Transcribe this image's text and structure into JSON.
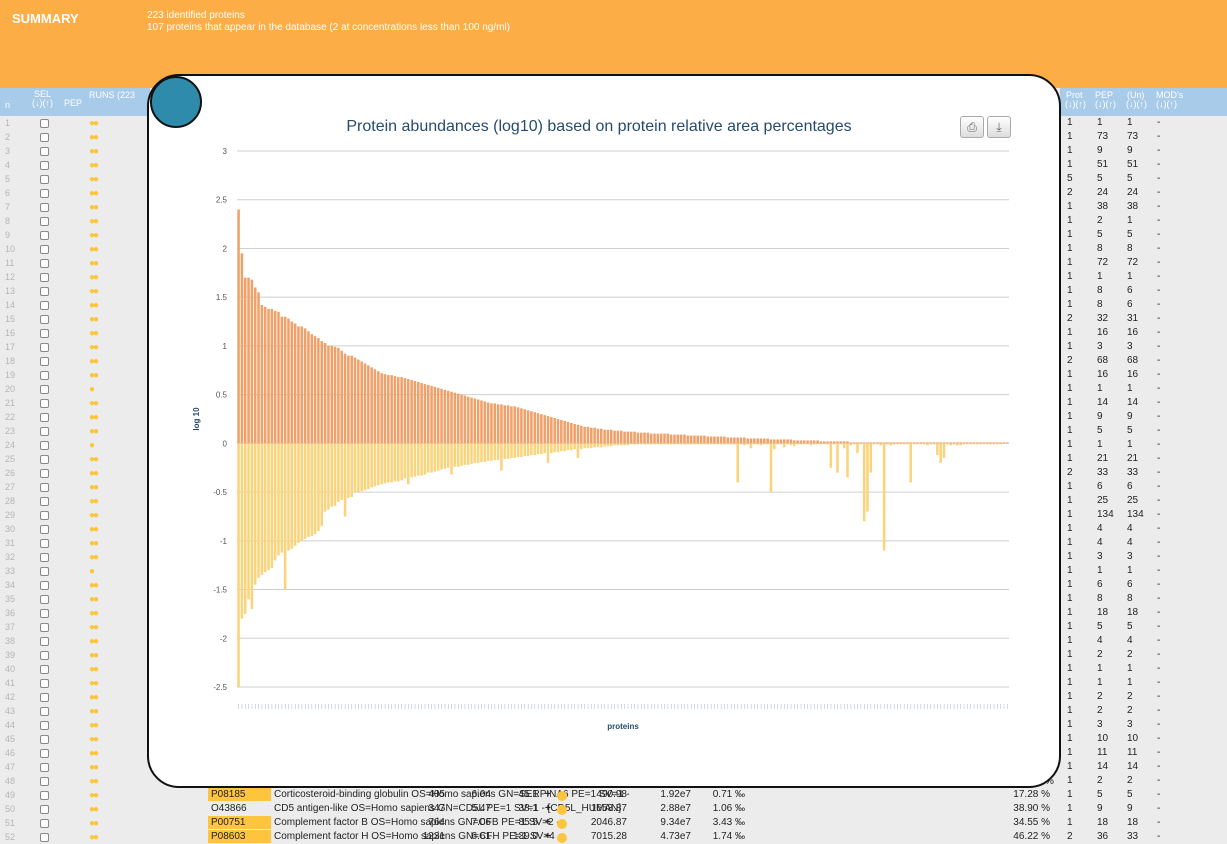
{
  "banner": {
    "title": "SUMMARY",
    "line1": "223 identified proteins",
    "line2": "107 proteins that appear in the database (2 at concentrations less than 100 ng/ml)"
  },
  "left_header": {
    "n": "n",
    "sel": "SEL",
    "sel_sort": "(↓)(↑)",
    "pep": "PEP",
    "runs": "RUNS (223"
  },
  "right_header": {
    "prot": "Prot",
    "pep": "PEP",
    "un": "(Un)",
    "mods": "MOD's",
    "sort": "(↓)(↑)"
  },
  "right_rows": [
    [
      "1",
      "1",
      "1",
      "-"
    ],
    [
      "1",
      "73",
      "73",
      "-"
    ],
    [
      "1",
      "9",
      "9",
      "-"
    ],
    [
      "1",
      "51",
      "51",
      "-"
    ],
    [
      "5",
      "5",
      "5",
      "-"
    ],
    [
      "2",
      "24",
      "24",
      "-"
    ],
    [
      "1",
      "38",
      "38",
      "-"
    ],
    [
      "1",
      "2",
      "1",
      "-"
    ],
    [
      "1",
      "5",
      "5",
      "-"
    ],
    [
      "1",
      "8",
      "8",
      "-"
    ],
    [
      "1",
      "72",
      "72",
      "-"
    ],
    [
      "1",
      "1",
      "1",
      "-"
    ],
    [
      "1",
      "8",
      "6",
      "-"
    ],
    [
      "1",
      "8",
      "6",
      "-"
    ],
    [
      "2",
      "32",
      "31",
      "-"
    ],
    [
      "1",
      "16",
      "16",
      "-"
    ],
    [
      "1",
      "3",
      "3",
      "-"
    ],
    [
      "2",
      "68",
      "68",
      "-"
    ],
    [
      "1",
      "16",
      "16",
      "-"
    ],
    [
      "1",
      "1",
      "1",
      "-"
    ],
    [
      "1",
      "14",
      "14",
      "-"
    ],
    [
      "1",
      "9",
      "9",
      "-"
    ],
    [
      "1",
      "5",
      "5",
      "-"
    ],
    [
      "1",
      "1",
      "1",
      "-"
    ],
    [
      "1",
      "21",
      "21",
      "-"
    ],
    [
      "2",
      "33",
      "33",
      "-"
    ],
    [
      "1",
      "6",
      "6",
      "-"
    ],
    [
      "1",
      "25",
      "25",
      "-"
    ],
    [
      "1",
      "134",
      "134",
      "-"
    ],
    [
      "1",
      "4",
      "4",
      "-"
    ],
    [
      "1",
      "4",
      "4",
      "-"
    ],
    [
      "1",
      "3",
      "3",
      "-"
    ],
    [
      "1",
      "1",
      "1",
      "-"
    ],
    [
      "1",
      "6",
      "6",
      "-"
    ],
    [
      "1",
      "8",
      "8",
      "-"
    ],
    [
      "1",
      "18",
      "18",
      "-"
    ],
    [
      "1",
      "5",
      "5",
      "-"
    ],
    [
      "1",
      "4",
      "4",
      "-"
    ],
    [
      "1",
      "2",
      "2",
      "-"
    ],
    [
      "1",
      "1",
      "1",
      "-"
    ],
    [
      "1",
      "1",
      "1",
      "-"
    ],
    [
      "1",
      "2",
      "2",
      "-"
    ],
    [
      "1",
      "2",
      "2",
      "-"
    ],
    [
      "1",
      "3",
      "3",
      "-"
    ],
    [
      "1",
      "10",
      "10",
      "-"
    ],
    [
      "1",
      "11",
      "11",
      "-"
    ],
    [
      "1",
      "14",
      "14",
      "-"
    ],
    [
      "1",
      "2",
      "2",
      "-"
    ],
    [
      "1",
      "5",
      "5",
      "-"
    ],
    [
      "1",
      "9",
      "9",
      "-"
    ],
    [
      "1",
      "18",
      "18",
      "-"
    ],
    [
      "2",
      "36",
      "33",
      "-"
    ]
  ],
  "protein_rows": [
    {
      "acc": "P08185",
      "desc": "Corticosteroid-binding globulin OS=Homo sapiens GN=SERPINA6 PE=1 SV=1 -",
      "n1": "405",
      "n2": "6.04",
      "n3": "45.1",
      "plus": "+",
      "n4": "490.98",
      "n5": "1.92e7",
      "n6": "0.71 ‰",
      "pct": "17.28 %",
      "highlight": true
    },
    {
      "acc": "O43866",
      "desc": "CD5 antigen-like OS=Homo sapiens GN=CD5L PE=1 SV=1 - [CD5L_HUMAN]",
      "n1": "347",
      "n2": "5.47",
      "n3": "38.1",
      "plus": "+",
      "n4": "1653.87",
      "n5": "2.88e7",
      "n6": "1.06 ‰",
      "pct": "38.90 %",
      "highlight": false
    },
    {
      "acc": "P00751",
      "desc": "Complement factor B OS=Homo sapiens GN=CFB PE=1 SV=2 -",
      "n1": "764",
      "n2": "7.06",
      "n3": "85.5",
      "plus": "+",
      "n4": "2046.87",
      "n5": "9.34e7",
      "n6": "3.43 ‰",
      "pct": "34.55 %",
      "highlight": true
    },
    {
      "acc": "P08603",
      "desc": "Complement factor H OS=Homo sapiens GN=CFH PE=1 SV=4 -",
      "n1": "1231",
      "n2": "6.61",
      "n3": "139.0",
      "plus": "+",
      "n4": "7015.28",
      "n5": "4.73e7",
      "n6": "1.74 ‰",
      "pct": "46.22 %",
      "highlight": true
    }
  ],
  "partial_pct": "%",
  "chart_data": {
    "type": "bar",
    "title": "Protein abundances (log10) based on protein relative area percentages",
    "xlabel": "proteins",
    "ylabel": "log 10",
    "ylim": [
      -2.5,
      3
    ],
    "yticks": [
      "3",
      "2.5",
      "2",
      "1.5",
      "1",
      "0.5",
      "0",
      "-0.5",
      "-1",
      "-1.5",
      "-2",
      "-2.5"
    ],
    "grid": true,
    "series": [
      {
        "color": "#f0a069",
        "values": [
          2.4,
          1.95,
          1.7,
          1.7,
          1.68,
          1.6,
          1.55,
          1.42,
          1.4,
          1.38,
          1.38,
          1.36,
          1.35,
          1.3,
          1.3,
          1.28,
          1.25,
          1.23,
          1.2,
          1.2,
          1.18,
          1.15,
          1.12,
          1.1,
          1.08,
          1.05,
          1.03,
          1.0,
          1.0,
          0.99,
          0.98,
          0.95,
          0.92,
          0.9,
          0.9,
          0.88,
          0.86,
          0.84,
          0.82,
          0.8,
          0.78,
          0.76,
          0.74,
          0.72,
          0.71,
          0.7,
          0.7,
          0.69,
          0.68,
          0.68,
          0.67,
          0.66,
          0.65,
          0.64,
          0.63,
          0.62,
          0.61,
          0.6,
          0.59,
          0.58,
          0.57,
          0.56,
          0.55,
          0.54,
          0.53,
          0.52,
          0.51,
          0.5,
          0.49,
          0.48,
          0.47,
          0.46,
          0.45,
          0.44,
          0.43,
          0.42,
          0.41,
          0.41,
          0.4,
          0.4,
          0.39,
          0.39,
          0.38,
          0.38,
          0.37,
          0.36,
          0.35,
          0.34,
          0.33,
          0.32,
          0.31,
          0.3,
          0.29,
          0.28,
          0.27,
          0.26,
          0.25,
          0.24,
          0.23,
          0.22,
          0.21,
          0.2,
          0.19,
          0.18,
          0.17,
          0.17,
          0.16,
          0.16,
          0.15,
          0.15,
          0.14,
          0.14,
          0.14,
          0.13,
          0.13,
          0.13,
          0.12,
          0.12,
          0.12,
          0.12,
          0.11,
          0.11,
          0.11,
          0.11,
          0.1,
          0.1,
          0.1,
          0.1,
          0.1,
          0.1,
          0.09,
          0.09,
          0.09,
          0.09,
          0.09,
          0.08,
          0.08,
          0.08,
          0.08,
          0.08,
          0.08,
          0.07,
          0.07,
          0.07,
          0.07,
          0.07,
          0.07,
          0.06,
          0.06,
          0.06,
          0.06,
          0.06,
          0.06,
          0.05,
          0.05,
          0.05,
          0.05,
          0.05,
          0.05,
          0.05,
          0.04,
          0.04,
          0.04,
          0.04,
          0.04,
          0.04,
          0.04,
          0.03,
          0.03,
          0.03,
          0.03,
          0.03,
          0.03,
          0.03,
          0.03,
          0.02,
          0.02,
          0.02,
          0.02,
          0.02,
          0.02,
          0.02,
          0.02,
          0.02,
          0.01,
          0.01,
          0.01,
          0.01,
          0.01,
          0.01,
          0.01,
          0.01,
          0.01,
          0.01,
          0.01,
          0.01,
          0.01,
          0.01,
          0.01,
          0.01,
          0.01,
          0.01,
          0.01,
          0.01,
          0.01,
          0.01,
          0.01,
          0.01,
          0.01,
          0.01,
          0.01,
          0.01,
          0.01,
          0.01,
          0.01,
          0.01,
          0.01,
          0.01,
          0.01,
          0.01,
          0.01,
          0.01,
          0.01,
          0.01,
          0.01,
          0.01,
          0.01,
          0.01,
          0.01,
          0.01,
          0.01,
          0.01
        ]
      },
      {
        "color": "#fbd37a",
        "values": [
          -2.5,
          -1.8,
          -1.75,
          -1.6,
          -1.7,
          -1.45,
          -1.38,
          -1.35,
          -1.32,
          -1.3,
          -1.28,
          -1.2,
          -1.15,
          -1.12,
          -1.5,
          -1.1,
          -1.08,
          -1.05,
          -1.02,
          -1.0,
          -0.98,
          -0.96,
          -0.95,
          -0.93,
          -0.9,
          -0.85,
          -0.7,
          -0.68,
          -0.65,
          -0.64,
          -0.6,
          -0.58,
          -0.75,
          -0.56,
          -0.55,
          -0.5,
          -0.5,
          -0.49,
          -0.48,
          -0.47,
          -0.45,
          -0.44,
          -0.43,
          -0.42,
          -0.41,
          -0.4,
          -0.4,
          -0.39,
          -0.39,
          -0.38,
          -0.36,
          -0.42,
          -0.35,
          -0.34,
          -0.33,
          -0.33,
          -0.32,
          -0.3,
          -0.3,
          -0.29,
          -0.28,
          -0.27,
          -0.26,
          -0.25,
          -0.32,
          -0.24,
          -0.24,
          -0.23,
          -0.22,
          -0.22,
          -0.21,
          -0.2,
          -0.2,
          -0.19,
          -0.19,
          -0.18,
          -0.18,
          -0.17,
          -0.17,
          -0.28,
          -0.16,
          -0.16,
          -0.15,
          -0.15,
          -0.14,
          -0.14,
          -0.13,
          -0.13,
          -0.12,
          -0.12,
          -0.11,
          -0.11,
          -0.1,
          -0.2,
          -0.1,
          -0.09,
          -0.09,
          -0.08,
          -0.08,
          -0.07,
          -0.07,
          -0.06,
          -0.15,
          -0.06,
          -0.05,
          -0.05,
          -0.05,
          -0.04,
          -0.04,
          -0.04,
          -0.03,
          -0.03,
          -0.03,
          -0.02,
          -0.02,
          -0.02,
          -0.02,
          -0.02,
          -0.01,
          -0.01,
          -0.01,
          -0.01,
          -0.01,
          -0.01,
          -0.01,
          -0.01,
          -0.01,
          -0.01,
          -0.01,
          -0.01,
          -0.01,
          -0.01,
          -0.01,
          -0.01,
          -0.01,
          -0.01,
          -0.01,
          -0.01,
          -0.01,
          -0.01,
          -0.01,
          -0.01,
          -0.01,
          -0.01,
          -0.01,
          -0.01,
          -0.01,
          -0.01,
          -0.01,
          -0.01,
          -0.4,
          -0.01,
          -0.02,
          -0.01,
          -0.05,
          -0.01,
          -0.01,
          -0.02,
          -0.01,
          -0.01,
          -0.5,
          -0.06,
          -0.01,
          -0.01,
          -0.04,
          -0.01,
          -0.02,
          -0.03,
          -0.01,
          -0.01,
          -0.01,
          -0.01,
          -0.02,
          -0.01,
          -0.01,
          -0.01,
          -0.01,
          -0.01,
          -0.25,
          -0.01,
          -0.3,
          -0.01,
          -0.05,
          -0.35,
          -0.02,
          -0.01,
          -0.1,
          -0.01,
          -0.8,
          -0.7,
          -0.3,
          -0.01,
          -0.01,
          -0.02,
          -1.1,
          -0.01,
          -0.02,
          -0.01,
          -0.01,
          -0.01,
          -0.01,
          -0.01,
          -0.4,
          -0.01,
          -0.01,
          -0.01,
          -0.01,
          -0.02,
          -0.01,
          -0.01,
          -0.12,
          -0.2,
          -0.15,
          -0.01,
          -0.02,
          -0.01,
          -0.02,
          -0.02,
          -0.01,
          -0.01,
          -0.01,
          -0.01,
          -0.01,
          -0.01,
          -0.01,
          -0.01,
          -0.01,
          -0.01,
          -0.01,
          -0.01
        ]
      }
    ]
  },
  "icons": {
    "print": "print-icon",
    "download": "download-icon"
  }
}
